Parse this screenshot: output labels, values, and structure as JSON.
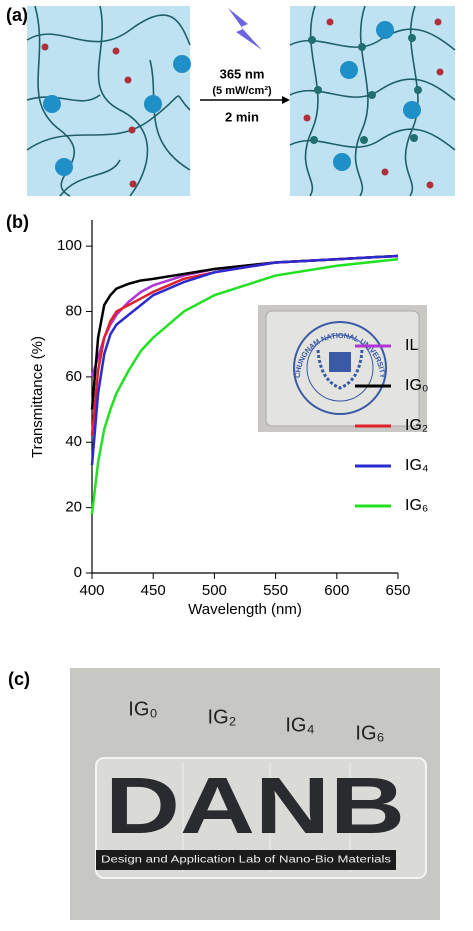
{
  "panel_a": {
    "label": "(a)",
    "wavelength": "365 nm",
    "intensity": "(5 mW/cm²)",
    "time": "2 min"
  },
  "chart_data": {
    "type": "line",
    "label": "(b)",
    "x_label": "Wavelength (nm)",
    "y_label": "Transmittance (%)",
    "x": [
      400,
      405,
      410,
      415,
      420,
      430,
      440,
      450,
      475,
      500,
      550,
      600,
      650
    ],
    "series": [
      {
        "name": "IL",
        "color": "#b035d6",
        "values": [
          60,
          66,
          72,
          76,
          79,
          83,
          86,
          88,
          91,
          93,
          95,
          96,
          97
        ]
      },
      {
        "name": "IG₀",
        "color": "#000000",
        "values": [
          50,
          72,
          82,
          85,
          87,
          88.5,
          89.5,
          90,
          91.5,
          93,
          95,
          96,
          97
        ]
      },
      {
        "name": "IG₂",
        "color": "#e0202a",
        "values": [
          42,
          62,
          72,
          77,
          80,
          82,
          84,
          86,
          90,
          92,
          95,
          96,
          97
        ]
      },
      {
        "name": "IG₄",
        "color": "#2a2ad0",
        "values": [
          33,
          55,
          67,
          73,
          76,
          79,
          82,
          85,
          89,
          92,
          95,
          96,
          97
        ]
      },
      {
        "name": "IG₆",
        "color": "#22e022",
        "values": [
          18,
          34,
          44,
          50,
          55,
          62,
          68,
          72,
          80,
          85,
          91,
          94,
          96
        ]
      }
    ],
    "xlim": [
      400,
      650
    ],
    "xticks": [
      400,
      450,
      500,
      550,
      600,
      650
    ],
    "ylim": [
      0,
      108
    ],
    "yticks": [
      0,
      20,
      40,
      60,
      80,
      100
    ],
    "legend": "right",
    "inset_text": "CHUNGNAM NATIONAL UNIVERSITY"
  },
  "panel_c": {
    "label": "(c)",
    "samples": [
      "IG₀",
      "IG₂",
      "IG₄",
      "IG₆"
    ],
    "logo": "DANB",
    "banner": "Design and Application Lab of Nano-Bio Materials"
  }
}
